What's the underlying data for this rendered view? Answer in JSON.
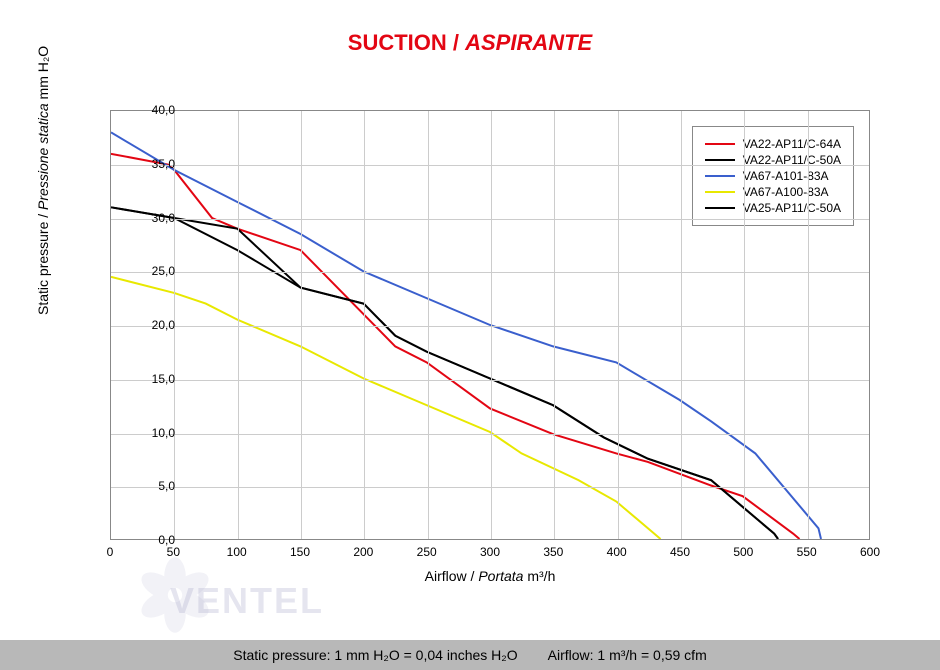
{
  "title": {
    "main": "SUCTION",
    "sep": " / ",
    "sub": "ASPIRANTE"
  },
  "chart": {
    "type": "line",
    "xlim": [
      0,
      600
    ],
    "xtick_step": 50,
    "ylim": [
      0,
      40
    ],
    "ytick_step": 5,
    "background": "#ffffff",
    "grid_color": "#cccccc",
    "border_color": "#888888",
    "ylabel_plain": "Static pressure",
    "ylabel_italic": "Pressione statica",
    "ylabel_unit": "mm  H₂O",
    "xlabel_plain": "Airflow",
    "xlabel_italic": "Portata",
    "xlabel_unit": "m³/h",
    "tick_fontsize": 12,
    "label_fontsize": 14,
    "line_width": 2,
    "series": [
      {
        "name": "VA22-AP11/C-64A",
        "color": "#e30613",
        "points": [
          [
            0,
            36
          ],
          [
            45,
            35
          ],
          [
            50,
            34.5
          ],
          [
            80,
            30
          ],
          [
            100,
            29
          ],
          [
            150,
            27
          ],
          [
            200,
            21
          ],
          [
            225,
            18
          ],
          [
            250,
            16.5
          ],
          [
            300,
            12.2
          ],
          [
            350,
            9.8
          ],
          [
            400,
            8
          ],
          [
            425,
            7.2
          ],
          [
            475,
            5
          ],
          [
            500,
            4
          ],
          [
            540,
            0.5
          ],
          [
            545,
            0
          ]
        ]
      },
      {
        "name": "VA22-AP11/C-50A",
        "color": "#000000",
        "points": [
          [
            0,
            31
          ],
          [
            50,
            30
          ],
          [
            100,
            29
          ],
          [
            150,
            23.5
          ],
          [
            200,
            22
          ],
          [
            225,
            19
          ],
          [
            250,
            17.5
          ],
          [
            300,
            15
          ],
          [
            350,
            12.5
          ],
          [
            390,
            9.5
          ],
          [
            425,
            7.5
          ],
          [
            475,
            5.5
          ],
          [
            500,
            3
          ],
          [
            525,
            0.5
          ],
          [
            528,
            0
          ]
        ]
      },
      {
        "name": "VA67-A101-83A",
        "color": "#3a5fcd",
        "points": [
          [
            0,
            38
          ],
          [
            50,
            34.5
          ],
          [
            100,
            31.5
          ],
          [
            150,
            28.5
          ],
          [
            200,
            25
          ],
          [
            250,
            22.5
          ],
          [
            300,
            20
          ],
          [
            350,
            18
          ],
          [
            400,
            16.5
          ],
          [
            450,
            13
          ],
          [
            475,
            11
          ],
          [
            510,
            8
          ],
          [
            560,
            1
          ],
          [
            562,
            0
          ]
        ]
      },
      {
        "name": "VA67-A100-83A",
        "color": "#e8e800",
        "points": [
          [
            0,
            24.5
          ],
          [
            50,
            23
          ],
          [
            75,
            22
          ],
          [
            100,
            20.5
          ],
          [
            150,
            18
          ],
          [
            200,
            15
          ],
          [
            250,
            12.5
          ],
          [
            300,
            10
          ],
          [
            325,
            8
          ],
          [
            370,
            5.5
          ],
          [
            400,
            3.5
          ],
          [
            430,
            0.5
          ],
          [
            435,
            0
          ]
        ]
      },
      {
        "name": "VA25-AP11/C-50A",
        "color": "#000000",
        "points": [
          [
            0,
            31
          ],
          [
            50,
            30
          ],
          [
            100,
            27
          ],
          [
            150,
            23.5
          ],
          [
            200,
            22
          ],
          [
            225,
            19
          ],
          [
            250,
            17.5
          ],
          [
            300,
            15
          ],
          [
            350,
            12.5
          ],
          [
            390,
            9.5
          ],
          [
            425,
            7.5
          ],
          [
            475,
            5.5
          ],
          [
            500,
            3
          ],
          [
            525,
            0.5
          ],
          [
            528,
            0
          ]
        ]
      }
    ]
  },
  "footer": {
    "pressure": "Static pressure: 1 mm H₂O = 0,04 inches H₂O",
    "airflow": "Airflow: 1 m³/h = 0,59 cfm"
  },
  "watermark": "VENTEL"
}
